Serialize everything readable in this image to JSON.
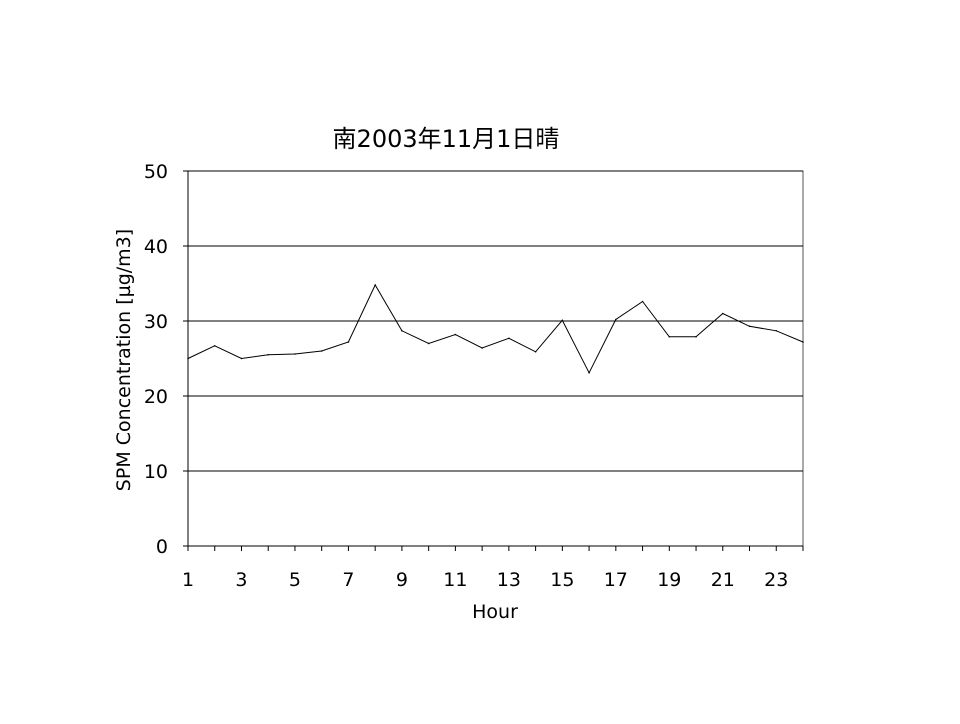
{
  "chart_data": {
    "type": "line",
    "title": "南2003年11月1日晴",
    "xlabel": "Hour",
    "ylabel": "SPM Concentration [µg/m3]",
    "x": [
      1,
      2,
      3,
      4,
      5,
      6,
      7,
      8,
      9,
      10,
      11,
      12,
      13,
      14,
      15,
      16,
      17,
      18,
      19,
      20,
      21,
      22,
      23,
      24
    ],
    "x_tick_labels": [
      "1",
      "3",
      "5",
      "7",
      "9",
      "11",
      "13",
      "15",
      "17",
      "19",
      "21",
      "23"
    ],
    "y_tick_labels": [
      "0",
      "10",
      "20",
      "30",
      "40",
      "50"
    ],
    "ylim": [
      0,
      50
    ],
    "grid": "horizontal",
    "series": [
      {
        "values": [
          25.0,
          26.7,
          25.0,
          25.5,
          25.6,
          26.0,
          27.2,
          34.8,
          28.7,
          27.0,
          28.2,
          26.4,
          27.7,
          25.9,
          30.1,
          23.1,
          30.2,
          32.6,
          27.9,
          27.9,
          31.0,
          29.3,
          28.7,
          27.2
        ],
        "color": "#000000"
      }
    ]
  }
}
